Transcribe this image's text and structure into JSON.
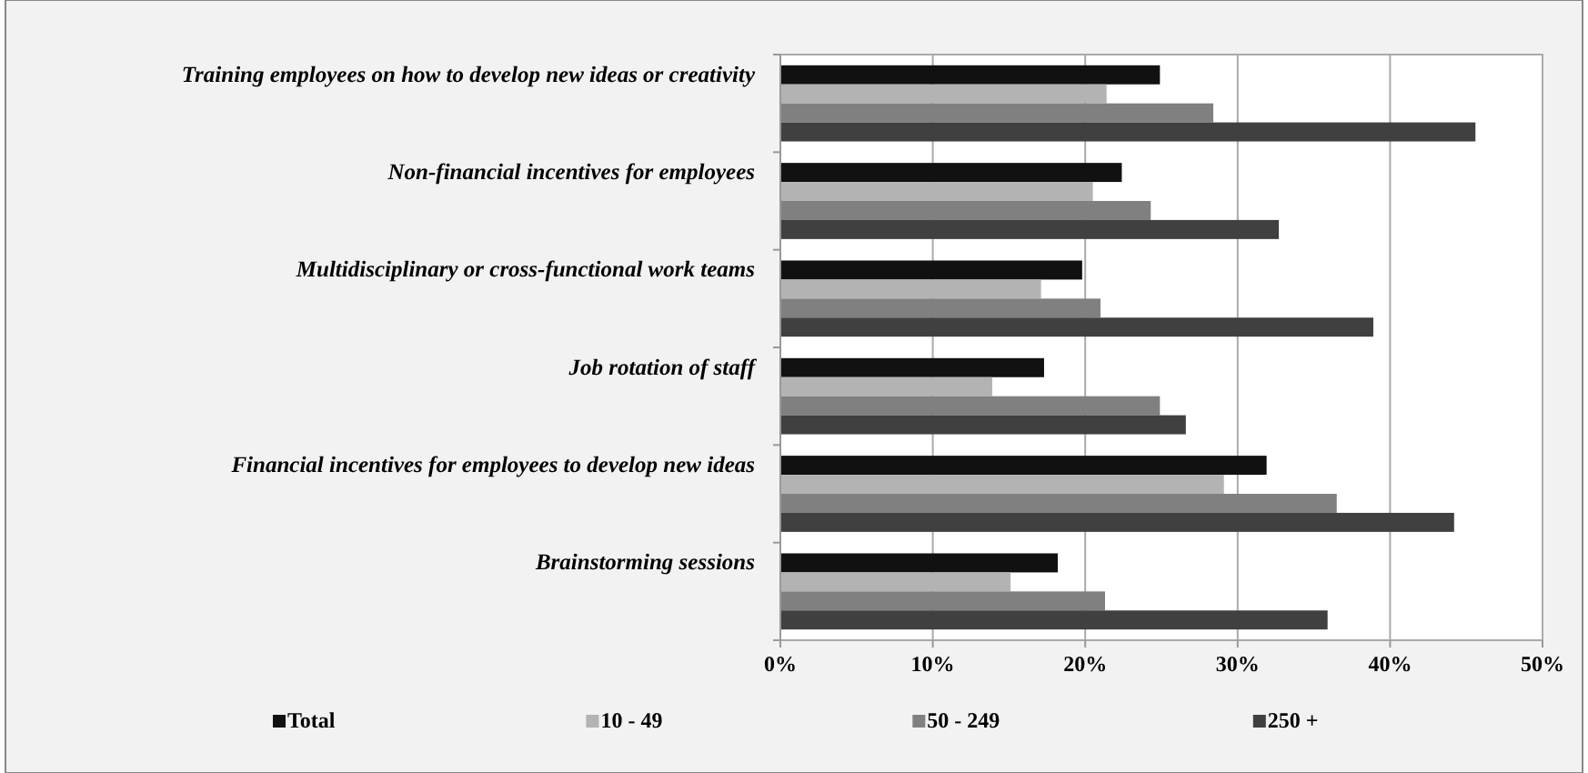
{
  "chart_data": {
    "type": "bar",
    "orientation": "horizontal",
    "categories": [
      "Training employees on how to develop new ideas or creativity",
      "Non-financial incentives for employees",
      "Multidisciplinary or cross-functional work teams",
      "Job rotation of staff",
      "Financial incentives for employees to develop new ideas",
      "Brainstorming sessions"
    ],
    "series": [
      {
        "name": "Total",
        "color": "#111111",
        "values": [
          24.9,
          22.4,
          19.8,
          17.3,
          31.9,
          18.2
        ]
      },
      {
        "name": "10 - 49",
        "color": "#b3b3b3",
        "values": [
          21.4,
          20.5,
          17.1,
          13.9,
          29.1,
          15.1
        ]
      },
      {
        "name": "50 - 249",
        "color": "#808080",
        "values": [
          28.4,
          24.3,
          21.0,
          24.9,
          36.5,
          21.3
        ]
      },
      {
        "name": "250 +",
        "color": "#404040",
        "values": [
          45.6,
          32.7,
          38.9,
          26.6,
          44.2,
          35.9
        ]
      }
    ],
    "xlim": [
      0,
      50
    ],
    "xticks": [
      {
        "value": 0,
        "label": "0%"
      },
      {
        "value": 10,
        "label": "10%"
      },
      {
        "value": 20,
        "label": "20%"
      },
      {
        "value": 30,
        "label": "30%"
      },
      {
        "value": 40,
        "label": "40%"
      },
      {
        "value": 50,
        "label": "50%"
      }
    ],
    "grid": "x",
    "legend": "bottom"
  }
}
